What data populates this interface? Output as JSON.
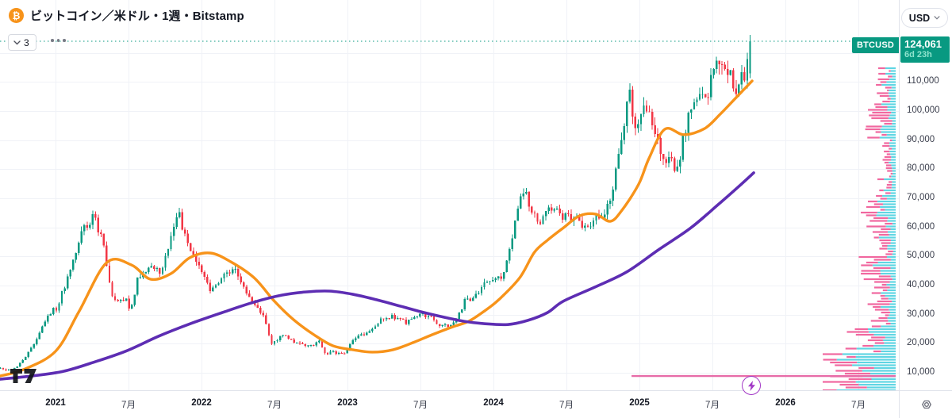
{
  "header": {
    "title": "ビットコイン／米ドル・1週・Bitstamp",
    "indicator_count": "3",
    "currency_button": "USD"
  },
  "price_axis": {
    "current": {
      "symbol": "BTCUSD",
      "price_label": "124,061",
      "countdown": "6d 23h",
      "price": 124061
    },
    "ticks": [
      {
        "label": "110,000",
        "price": 110000
      },
      {
        "label": "100,000",
        "price": 100000
      },
      {
        "label": "90,000",
        "price": 90000
      },
      {
        "label": "80,000",
        "price": 80000
      },
      {
        "label": "70,000",
        "price": 70000
      },
      {
        "label": "60,000",
        "price": 60000
      },
      {
        "label": "50,000",
        "price": 50000
      },
      {
        "label": "40,000",
        "price": 40000
      },
      {
        "label": "30,000",
        "price": 30000
      },
      {
        "label": "20,000",
        "price": 20000
      },
      {
        "label": "10,000",
        "price": 10000
      }
    ]
  },
  "time_axis": {
    "ticks": [
      {
        "label": "2021",
        "t": 2021.0,
        "bold": true
      },
      {
        "label": "7月",
        "t": 2021.5,
        "bold": false
      },
      {
        "label": "2022",
        "t": 2022.0,
        "bold": true
      },
      {
        "label": "7月",
        "t": 2022.5,
        "bold": false
      },
      {
        "label": "2023",
        "t": 2023.0,
        "bold": true
      },
      {
        "label": "7月",
        "t": 2023.5,
        "bold": false
      },
      {
        "label": "2024",
        "t": 2024.0,
        "bold": true
      },
      {
        "label": "7月",
        "t": 2024.5,
        "bold": false
      },
      {
        "label": "2025",
        "t": 2025.0,
        "bold": true
      },
      {
        "label": "7月",
        "t": 2025.5,
        "bold": false
      },
      {
        "label": "2026",
        "t": 2026.0,
        "bold": true
      },
      {
        "label": "7月",
        "t": 2026.5,
        "bold": false
      }
    ]
  },
  "chart_data": {
    "type": "candlestick",
    "symbol": "BTCUSD",
    "exchange": "Bitstamp",
    "interval": "1週",
    "currency": "USD",
    "title": "ビットコイン／米ドル・1週・Bitstamp",
    "current_price": 124061,
    "candle_countdown": "6d 23h",
    "ylim": [
      4500,
      126500
    ],
    "grid": true,
    "candle_up_color": "#089981",
    "candle_down_color": "#F23645",
    "current_price_line_color": "#089981",
    "weekly_close_anchors": [
      [
        2020.621,
        11700
      ],
      [
        2020.704,
        10800
      ],
      [
        2020.788,
        13800
      ],
      [
        2020.871,
        19700
      ],
      [
        2020.954,
        28900
      ],
      [
        2021.038,
        33100
      ],
      [
        2021.12,
        45200
      ],
      [
        2021.204,
        58800
      ],
      [
        2021.27,
        63500
      ],
      [
        2021.33,
        57800
      ],
      [
        2021.371,
        46500
      ],
      [
        2021.415,
        35600
      ],
      [
        2021.5,
        35000
      ],
      [
        2021.538,
        31500
      ],
      [
        2021.58,
        41600
      ],
      [
        2021.663,
        47100
      ],
      [
        2021.746,
        43800
      ],
      [
        2021.83,
        61300
      ],
      [
        2021.868,
        65500
      ],
      [
        2021.912,
        57000
      ],
      [
        2022.0,
        46200
      ],
      [
        2022.08,
        38500
      ],
      [
        2022.163,
        43200
      ],
      [
        2022.246,
        45500
      ],
      [
        2022.33,
        37600
      ],
      [
        2022.413,
        31800
      ],
      [
        2022.455,
        28500
      ],
      [
        2022.495,
        19900
      ],
      [
        2022.58,
        23300
      ],
      [
        2022.663,
        20050
      ],
      [
        2022.746,
        19400
      ],
      [
        2022.829,
        20500
      ],
      [
        2022.868,
        16300
      ],
      [
        2022.912,
        17100
      ],
      [
        2023.0,
        16550
      ],
      [
        2023.08,
        23100
      ],
      [
        2023.163,
        23500
      ],
      [
        2023.246,
        28500
      ],
      [
        2023.33,
        29300
      ],
      [
        2023.413,
        27200
      ],
      [
        2023.495,
        30500
      ],
      [
        2023.58,
        29200
      ],
      [
        2023.663,
        26000
      ],
      [
        2023.746,
        26950
      ],
      [
        2023.829,
        34650
      ],
      [
        2023.912,
        37700
      ],
      [
        2024.0,
        42250
      ],
      [
        2024.08,
        42600
      ],
      [
        2024.163,
        61200
      ],
      [
        2024.205,
        71300
      ],
      [
        2024.246,
        69650
      ],
      [
        2024.33,
        60600
      ],
      [
        2024.413,
        67500
      ],
      [
        2024.495,
        62700
      ],
      [
        2024.58,
        64600
      ],
      [
        2024.663,
        59000
      ],
      [
        2024.746,
        63300
      ],
      [
        2024.829,
        70200
      ],
      [
        2024.912,
        96400
      ],
      [
        2024.95,
        104000
      ],
      [
        2025.0,
        93400
      ],
      [
        2025.04,
        104500
      ],
      [
        2025.08,
        102400
      ],
      [
        2025.163,
        84350
      ],
      [
        2025.246,
        82550
      ],
      [
        2025.275,
        78500
      ],
      [
        2025.33,
        94200
      ],
      [
        2025.413,
        104600
      ],
      [
        2025.495,
        107100
      ],
      [
        2025.538,
        119000
      ],
      [
        2025.58,
        115800
      ],
      [
        2025.663,
        108200
      ],
      [
        2025.746,
        114000
      ],
      [
        2025.776,
        124061
      ]
    ],
    "ma_fast": {
      "name": "MA fast",
      "color": "#F7931A",
      "points": [
        [
          2020.62,
          8900
        ],
        [
          2020.78,
          11100
        ],
        [
          2021.0,
          17400
        ],
        [
          2021.16,
          31000
        ],
        [
          2021.35,
          47900
        ],
        [
          2021.52,
          47100
        ],
        [
          2021.65,
          42200
        ],
        [
          2021.79,
          44100
        ],
        [
          2021.92,
          49600
        ],
        [
          2022.06,
          51200
        ],
        [
          2022.2,
          48200
        ],
        [
          2022.36,
          42700
        ],
        [
          2022.5,
          34600
        ],
        [
          2022.63,
          28300
        ],
        [
          2022.77,
          23100
        ],
        [
          2022.9,
          19300
        ],
        [
          2023.04,
          17900
        ],
        [
          2023.17,
          17100
        ],
        [
          2023.31,
          17900
        ],
        [
          2023.45,
          20400
        ],
        [
          2023.58,
          23100
        ],
        [
          2023.72,
          25800
        ],
        [
          2023.83,
          27700
        ],
        [
          2023.94,
          31300
        ],
        [
          2024.04,
          35300
        ],
        [
          2024.18,
          42700
        ],
        [
          2024.28,
          51400
        ],
        [
          2024.37,
          55600
        ],
        [
          2024.48,
          59900
        ],
        [
          2024.59,
          64000
        ],
        [
          2024.7,
          64600
        ],
        [
          2024.8,
          62100
        ],
        [
          2024.88,
          65900
        ],
        [
          2024.995,
          74900
        ],
        [
          2025.065,
          83700
        ],
        [
          2025.174,
          93800
        ],
        [
          2025.304,
          91900
        ],
        [
          2025.446,
          94000
        ],
        [
          2025.554,
          99000
        ],
        [
          2025.663,
          104700
        ],
        [
          2025.772,
          110400
        ]
      ]
    },
    "ma_slow": {
      "name": "MA slow",
      "color": "#5D2DB3",
      "points": [
        [
          2020.62,
          7800
        ],
        [
          2020.837,
          8900
        ],
        [
          2021.054,
          10500
        ],
        [
          2021.272,
          13800
        ],
        [
          2021.489,
          17600
        ],
        [
          2021.707,
          22600
        ],
        [
          2021.924,
          26900
        ],
        [
          2022.141,
          30700
        ],
        [
          2022.359,
          34300
        ],
        [
          2022.549,
          36700
        ],
        [
          2022.712,
          37800
        ],
        [
          2022.875,
          38100
        ],
        [
          2023.038,
          37000
        ],
        [
          2023.201,
          35100
        ],
        [
          2023.364,
          32900
        ],
        [
          2023.527,
          30700
        ],
        [
          2023.663,
          29100
        ],
        [
          2023.799,
          27700
        ],
        [
          2023.935,
          26900
        ],
        [
          2024.098,
          26600
        ],
        [
          2024.234,
          28000
        ],
        [
          2024.37,
          30700
        ],
        [
          2024.478,
          34600
        ],
        [
          2024.696,
          39500
        ],
        [
          2024.913,
          44700
        ],
        [
          2025.13,
          52300
        ],
        [
          2025.348,
          59700
        ],
        [
          2025.538,
          67800
        ],
        [
          2025.674,
          73800
        ],
        [
          2025.783,
          78800
        ]
      ]
    },
    "volume_profile": {
      "up_color": "#5FD5E3",
      "down_color": "#F1679F",
      "regions": [
        [
          115000,
          110000,
          0.2,
          0.45
        ],
        [
          110000,
          104000,
          0.24,
          0.4
        ],
        [
          104000,
          96000,
          0.32,
          0.55
        ],
        [
          96000,
          90000,
          0.34,
          0.45
        ],
        [
          90000,
          78000,
          0.15,
          0.4
        ],
        [
          78000,
          71000,
          0.2,
          0.45
        ],
        [
          71000,
          63000,
          0.4,
          0.45
        ],
        [
          63000,
          57000,
          0.34,
          0.58
        ],
        [
          57000,
          50000,
          0.24,
          0.45
        ],
        [
          50000,
          42000,
          0.42,
          0.58
        ],
        [
          42000,
          33000,
          0.32,
          0.5
        ],
        [
          33000,
          26000,
          0.27,
          0.45
        ],
        [
          26000,
          17000,
          0.56,
          0.4
        ],
        [
          17000,
          1500,
          0.88,
          0.33
        ]
      ]
    },
    "overlay_line": {
      "color": "#E76CA8",
      "price": 8900,
      "t_start": 2024.946
    }
  }
}
